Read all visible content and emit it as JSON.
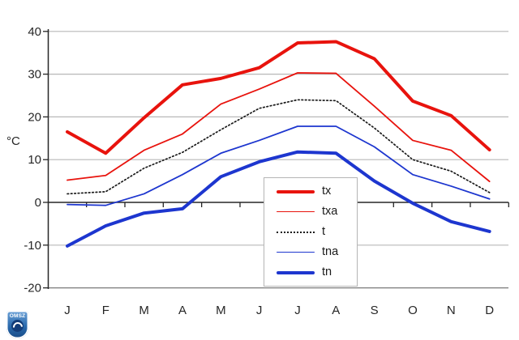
{
  "chart_data": {
    "type": "line",
    "title": "",
    "xlabel": "",
    "ylabel": "°C",
    "categories": [
      "J",
      "F",
      "M",
      "A",
      "M",
      "J",
      "J",
      "A",
      "S",
      "O",
      "N",
      "D"
    ],
    "y_ticks": [
      40,
      30,
      20,
      10,
      0,
      -10,
      -20
    ],
    "ylim": [
      -20,
      40
    ],
    "grid": true,
    "legend_position": "inset-bottom-center",
    "axis_color": "#262626",
    "grid_color": "#b8b8b8",
    "series": [
      {
        "name": "tx",
        "color": "#e8130d",
        "width": 4,
        "style": "solid",
        "values": [
          16.5,
          11.5,
          19.8,
          27.5,
          29,
          31.5,
          37.3,
          37.6,
          33.6,
          23.7,
          20.3,
          12.3
        ]
      },
      {
        "name": "txa",
        "color": "#e8130d",
        "width": 1.8,
        "style": "solid",
        "values": [
          5.2,
          6.3,
          12.2,
          16,
          23,
          26.5,
          30.3,
          30.2,
          22.5,
          14.5,
          12.2,
          4.9
        ]
      },
      {
        "name": "t",
        "color": "#1a1a1a",
        "width": 1.7,
        "style": "dotted",
        "values": [
          2,
          2.5,
          8,
          11.7,
          17,
          22,
          24,
          23.8,
          17.4,
          10,
          7.3,
          2.3
        ]
      },
      {
        "name": "tna",
        "color": "#1d36cf",
        "width": 1.8,
        "style": "solid",
        "values": [
          -0.5,
          -0.7,
          2,
          6.5,
          11.5,
          14.5,
          17.8,
          17.8,
          13,
          6.5,
          3.8,
          0.8
        ]
      },
      {
        "name": "tn",
        "color": "#1d36cf",
        "width": 4,
        "style": "solid",
        "values": [
          -10.2,
          -5.5,
          -2.5,
          -1.5,
          6,
          9.5,
          11.8,
          11.5,
          5,
          -0.2,
          -4.5,
          -6.8
        ]
      }
    ]
  },
  "logo": {
    "text": "OMSZ"
  }
}
